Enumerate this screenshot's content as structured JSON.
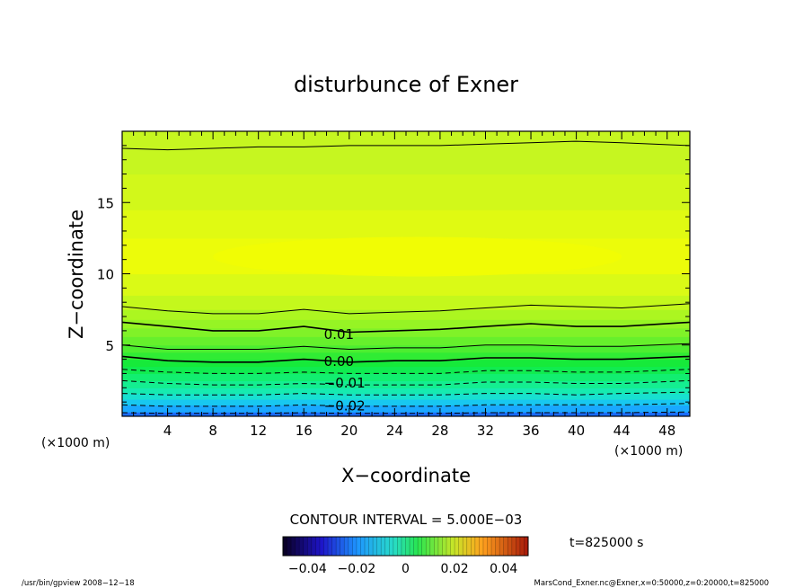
{
  "chart_data": {
    "type": "heatmap",
    "title": "disturbunce of Exner",
    "xlabel": "X−coordinate",
    "ylabel": "Z−coordinate",
    "x_unit_left": "(×1000 m)",
    "x_unit_right": "(×1000 m)",
    "xlim": [
      0,
      50
    ],
    "ylim": [
      0,
      20
    ],
    "x_ticks": [
      4,
      8,
      12,
      16,
      20,
      24,
      28,
      32,
      36,
      40,
      44,
      48
    ],
    "y_ticks": [
      5,
      10,
      15
    ],
    "contour_interval_text": "CONTOUR INTERVAL = 5.000E−03",
    "contour_labels": [
      {
        "text": "0.01",
        "x": 17.3,
        "z": 5.8
      },
      {
        "text": "0.00",
        "x": 17.3,
        "z": 3.9
      },
      {
        "text": "−0.01",
        "x": 17.3,
        "z": 2.4
      },
      {
        "text": "−0.02",
        "x": 17.3,
        "z": 0.8
      }
    ],
    "contour_levels": [
      {
        "value": 0.02,
        "z": [
          18.8,
          18.7,
          18.8,
          18.9,
          18.9,
          19.0,
          19.0,
          19.0,
          19.1,
          19.2,
          19.3,
          19.2,
          19.0
        ],
        "style": "solid"
      },
      {
        "value": 0.015,
        "z": [
          7.7,
          7.4,
          7.2,
          7.2,
          7.5,
          7.2,
          7.3,
          7.4,
          7.6,
          7.8,
          7.7,
          7.6,
          7.9
        ],
        "style": "solid"
      },
      {
        "value": 0.01,
        "z": [
          6.6,
          6.3,
          6.0,
          6.0,
          6.3,
          5.9,
          6.0,
          6.1,
          6.3,
          6.5,
          6.3,
          6.3,
          6.6
        ],
        "style": "solid"
      },
      {
        "value": 0.005,
        "z": [
          5.0,
          4.7,
          4.7,
          4.7,
          4.9,
          4.7,
          4.8,
          4.8,
          5.0,
          5.0,
          4.9,
          4.9,
          5.1
        ],
        "style": "solid"
      },
      {
        "value": 0.0,
        "z": [
          4.2,
          3.9,
          3.8,
          3.8,
          4.0,
          3.8,
          3.9,
          3.9,
          4.1,
          4.1,
          4.0,
          4.0,
          4.2
        ],
        "style": "solid"
      },
      {
        "value": -0.005,
        "z": [
          3.3,
          3.1,
          3.0,
          3.0,
          3.1,
          3.0,
          3.0,
          3.0,
          3.2,
          3.2,
          3.1,
          3.1,
          3.3
        ],
        "style": "dashed"
      },
      {
        "value": -0.01,
        "z": [
          2.5,
          2.3,
          2.2,
          2.2,
          2.3,
          2.2,
          2.2,
          2.2,
          2.4,
          2.4,
          2.3,
          2.3,
          2.5
        ],
        "style": "dashed"
      },
      {
        "value": -0.015,
        "z": [
          1.6,
          1.5,
          1.5,
          1.5,
          1.6,
          1.5,
          1.5,
          1.5,
          1.6,
          1.6,
          1.5,
          1.6,
          1.7
        ],
        "style": "dashed"
      },
      {
        "value": -0.02,
        "z": [
          0.8,
          0.7,
          0.7,
          0.7,
          0.8,
          0.7,
          0.7,
          0.7,
          0.8,
          0.8,
          0.8,
          0.8,
          0.9
        ],
        "style": "dashed"
      },
      {
        "value": -0.025,
        "z": [
          0.25,
          0.2,
          0.2,
          0.2,
          0.25,
          0.2,
          0.2,
          0.2,
          0.25,
          0.25,
          0.25,
          0.25,
          0.3
        ],
        "style": "dashed"
      }
    ],
    "contour_x": [
      0,
      4,
      8,
      12,
      16,
      20,
      24,
      28,
      32,
      36,
      40,
      44,
      50
    ],
    "fill_bands": [
      {
        "z0": 0.0,
        "z1": 0.3,
        "color": "#1a6cff"
      },
      {
        "z0": 0.3,
        "z1": 0.8,
        "color": "#1aa8ff"
      },
      {
        "z0": 0.8,
        "z1": 1.2,
        "color": "#18c8f0"
      },
      {
        "z0": 1.2,
        "z1": 1.6,
        "color": "#18e0d0"
      },
      {
        "z0": 1.6,
        "z1": 2.0,
        "color": "#16ebb0"
      },
      {
        "z0": 2.0,
        "z1": 2.5,
        "color": "#14ee90"
      },
      {
        "z0": 2.5,
        "z1": 3.0,
        "color": "#12ee70"
      },
      {
        "z0": 3.0,
        "z1": 3.5,
        "color": "#10ec50"
      },
      {
        "z0": 3.5,
        "z1": 4.0,
        "color": "#16ea3a"
      },
      {
        "z0": 4.0,
        "z1": 4.5,
        "color": "#30ec34"
      },
      {
        "z0": 4.5,
        "z1": 5.0,
        "color": "#4cee30"
      },
      {
        "z0": 5.0,
        "z1": 5.6,
        "color": "#66f02c"
      },
      {
        "z0": 5.6,
        "z1": 6.2,
        "color": "#80f228"
      },
      {
        "z0": 6.2,
        "z1": 6.8,
        "color": "#96f424"
      },
      {
        "z0": 6.8,
        "z1": 7.5,
        "color": "#acf620"
      },
      {
        "z0": 7.5,
        "z1": 8.5,
        "color": "#c4f81c"
      },
      {
        "z0": 8.5,
        "z1": 10.0,
        "color": "#dafa16"
      },
      {
        "z0": 10.0,
        "z1": 12.5,
        "color": "#ecfc0a"
      },
      {
        "z0": 12.5,
        "z1": 14.5,
        "color": "#e0fa12"
      },
      {
        "z0": 14.5,
        "z1": 17.0,
        "color": "#d2f81a"
      },
      {
        "z0": 17.0,
        "z1": 20.0,
        "color": "#c6f620"
      }
    ],
    "colorbar": {
      "min": -0.05,
      "max": 0.05,
      "tick_labels": [
        {
          "value": -0.04,
          "text": "−0.04"
        },
        {
          "value": -0.02,
          "text": "−0.02"
        },
        {
          "value": 0,
          "text": "0"
        },
        {
          "value": 0.02,
          "text": "0.02"
        },
        {
          "value": 0.04,
          "text": "0.04"
        }
      ]
    },
    "time_label": "t=825000 s",
    "footer_left": "/usr/bin/gpview   2008−12−18",
    "footer_right": "MarsCond_Exner.nc@Exner,x=0:50000,z=0:20000,t=825000"
  }
}
